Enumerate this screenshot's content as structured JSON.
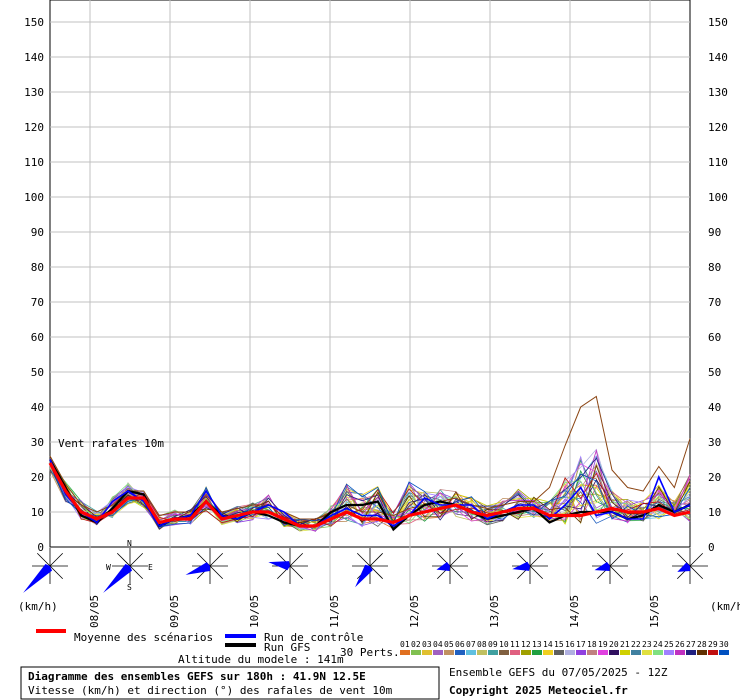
{
  "chart_data": {
    "type": "line",
    "title": "Vent rafales 10m",
    "ylabel_left": "(km/h)",
    "ylabel_right": "(km/h)",
    "y_ticks": [
      0,
      10,
      20,
      30,
      40,
      50,
      60,
      70,
      80,
      90,
      100,
      110,
      120,
      130,
      140,
      150
    ],
    "ylim": [
      0,
      155
    ],
    "x_ticks": [
      "08/05",
      "09/05",
      "10/05",
      "11/05",
      "12/05",
      "13/05",
      "14/05",
      "15/05"
    ],
    "grid": true,
    "legend": [
      {
        "label": "Moyenne des scénarios",
        "color": "#ff0000"
      },
      {
        "label": "Run de contrôle",
        "color": "#0000ff"
      },
      {
        "label": "Run GFS",
        "color": "#000000"
      }
    ],
    "perturbations_label": "30 Perts.",
    "perturbation_numbers": [
      "01",
      "02",
      "03",
      "04",
      "05",
      "06",
      "07",
      "08",
      "09",
      "10",
      "11",
      "12",
      "13",
      "14",
      "15",
      "16",
      "17",
      "18",
      "19",
      "20",
      "21",
      "22",
      "23",
      "24",
      "25",
      "26",
      "27",
      "28",
      "29",
      "30"
    ],
    "perturbation_colors": [
      "#e07020",
      "#80c050",
      "#e0c030",
      "#a060c0",
      "#c09060",
      "#2060c0",
      "#60c0e0",
      "#c0c060",
      "#40a0a0",
      "#806040",
      "#e06080",
      "#a0a000",
      "#20a040",
      "#f0d020",
      "#606060",
      "#b0b0e0",
      "#9040e0",
      "#c08080",
      "#e040e0",
      "#301060",
      "#d0d000",
      "#4080a0",
      "#e0e040",
      "#80e080",
      "#a080ff",
      "#c030c0",
      "#202080",
      "#603000",
      "#c01010",
      "#0050c0"
    ],
    "mean_series": [
      24,
      16,
      10,
      8,
      10,
      14,
      14,
      7,
      8,
      8,
      13,
      8,
      9,
      10,
      10,
      8,
      6,
      6,
      8,
      10,
      8,
      8,
      7,
      9,
      10,
      11,
      12,
      10,
      9,
      10,
      11,
      11,
      9,
      9,
      9,
      10,
      11,
      10,
      10,
      11,
      9,
      10
    ],
    "control_series": [
      25,
      15,
      10,
      7,
      13,
      16,
      13,
      6,
      8,
      9,
      16,
      9,
      8,
      10,
      12,
      10,
      6,
      6,
      9,
      11,
      9,
      9,
      6,
      9,
      14,
      12,
      12,
      12,
      8,
      10,
      12,
      12,
      8,
      12,
      17,
      9,
      10,
      8,
      8,
      20,
      10,
      12
    ],
    "gfs_series": [
      25,
      17,
      9,
      7,
      11,
      16,
      15,
      6,
      8,
      9,
      13,
      9,
      8,
      10,
      9,
      7,
      6,
      6,
      10,
      12,
      12,
      13,
      5,
      9,
      12,
      13,
      12,
      10,
      8,
      9,
      10,
      11,
      7,
      9,
      10,
      10,
      10,
      8,
      9,
      12,
      10,
      12
    ],
    "spread_min": [
      20,
      10,
      6,
      5,
      7,
      10,
      9,
      3,
      5,
      5,
      8,
      5,
      5,
      6,
      6,
      4,
      3,
      3,
      4,
      5,
      4,
      4,
      3,
      4,
      5,
      5,
      6,
      5,
      4,
      5,
      5,
      6,
      4,
      4,
      4,
      4,
      5,
      4,
      5,
      5,
      4,
      5
    ],
    "spread_max": [
      26,
      21,
      16,
      12,
      18,
      22,
      17,
      11,
      13,
      13,
      21,
      12,
      14,
      15,
      20,
      12,
      10,
      10,
      15,
      25,
      22,
      26,
      13,
      27,
      21,
      21,
      19,
      18,
      14,
      17,
      21,
      17,
      17,
      29,
      40,
      43,
      22,
      17,
      16,
      23,
      17,
      31
    ],
    "wind_roses_count": 8,
    "bottom_info": {
      "title": "Diagramme des ensembles GEFS sur 180h : 41.9N 12.5E",
      "subtitle": "Vitesse (km/h) et direction (°) des rafales de vent 10m",
      "altitude": "Altitude du modele : 141m",
      "ensemble": "Ensemble GEFS du 07/05/2025 - 12Z",
      "copyright": "Copyright 2025 Meteociel.fr"
    },
    "compass": [
      "N",
      "E",
      "S",
      "W"
    ]
  }
}
